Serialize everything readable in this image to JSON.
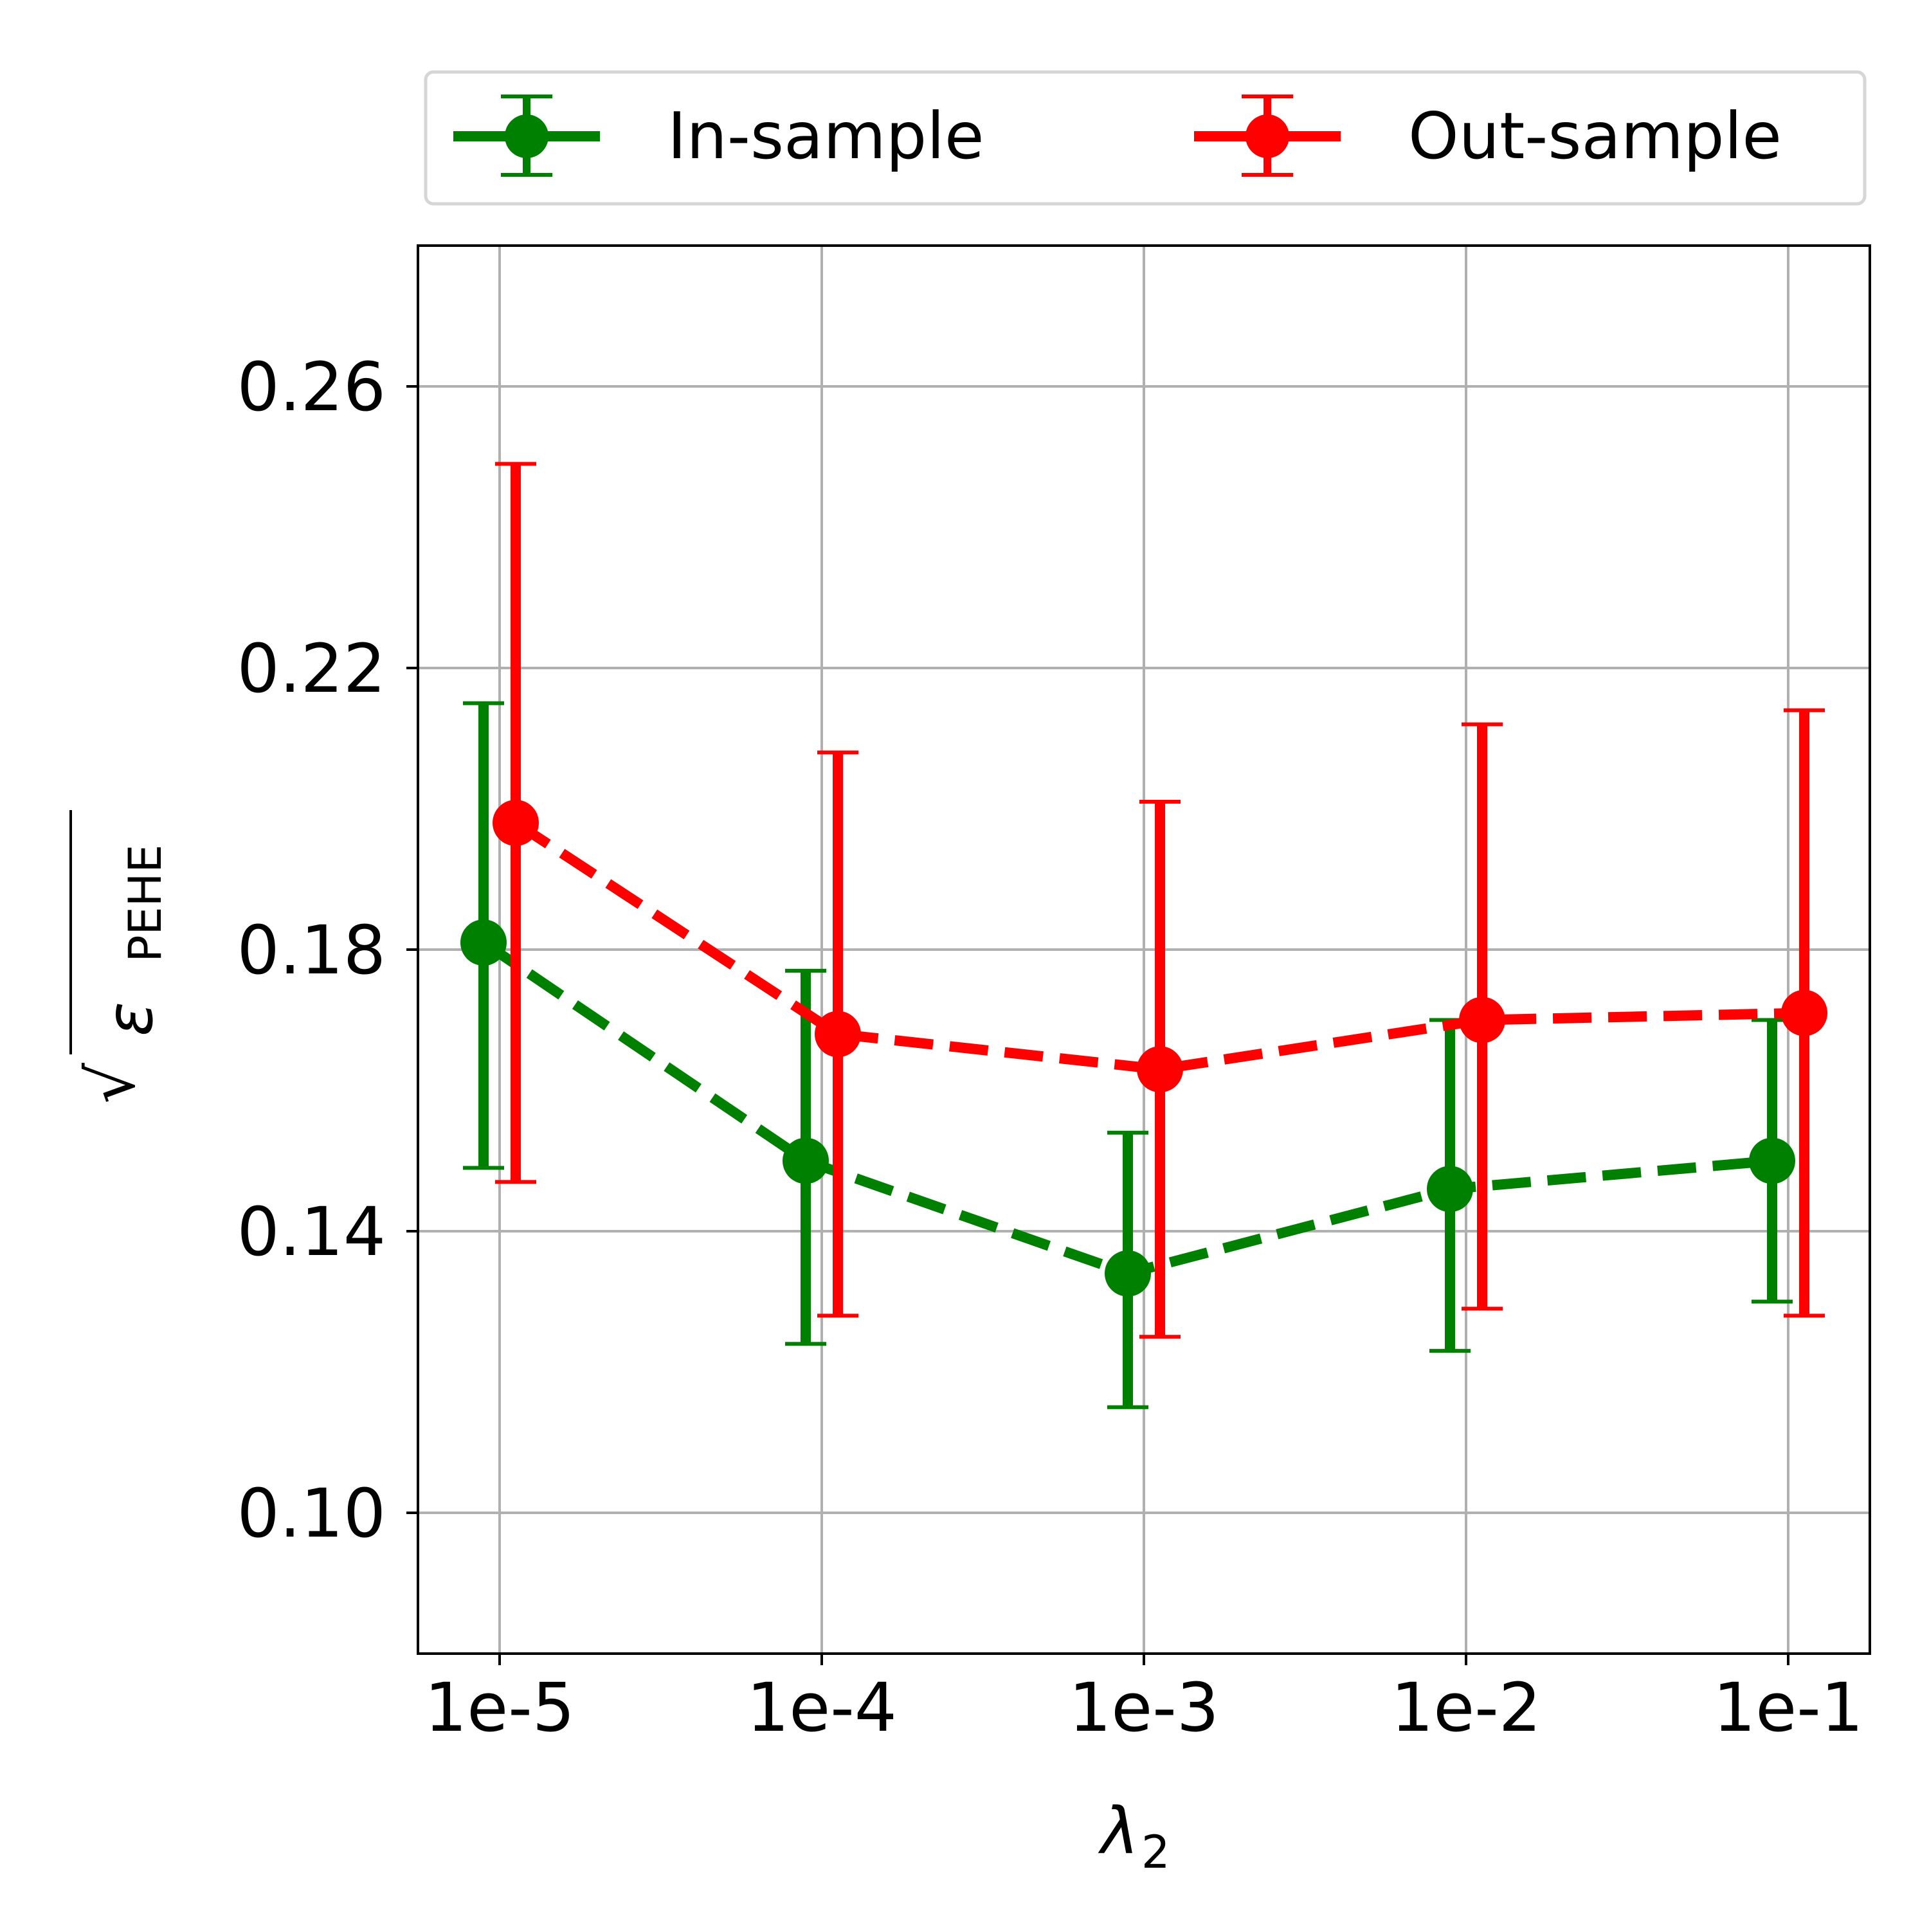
{
  "chart_data": {
    "type": "line",
    "categories": [
      "1e-5",
      "1e-4",
      "1e-3",
      "1e-2",
      "1e-1"
    ],
    "xlabel": {
      "main": "λ",
      "sub": "2"
    },
    "ylabel": {
      "main": "ε",
      "sub": "PEHE",
      "root": "√"
    },
    "ylim": [
      0.08,
      0.28
    ],
    "yticks": [
      0.1,
      0.14,
      0.18,
      0.22,
      0.26
    ],
    "ytick_labels": [
      "0.10",
      "0.14",
      "0.18",
      "0.22",
      "0.26"
    ],
    "grid": true,
    "legend_position": "top (above plot)",
    "series": [
      {
        "name": "In-sample",
        "color": "#008000",
        "values": [
          0.181,
          0.15,
          0.134,
          0.146,
          0.15
        ],
        "lower": [
          0.149,
          0.124,
          0.115,
          0.123,
          0.13
        ],
        "upper": [
          0.215,
          0.177,
          0.154,
          0.17,
          0.17
        ]
      },
      {
        "name": "Out-sample",
        "color": "#ff0000",
        "values": [
          0.198,
          0.168,
          0.163,
          0.17,
          0.171
        ],
        "lower": [
          0.147,
          0.128,
          0.125,
          0.129,
          0.128
        ],
        "upper": [
          0.249,
          0.208,
          0.201,
          0.212,
          0.214
        ]
      }
    ]
  }
}
